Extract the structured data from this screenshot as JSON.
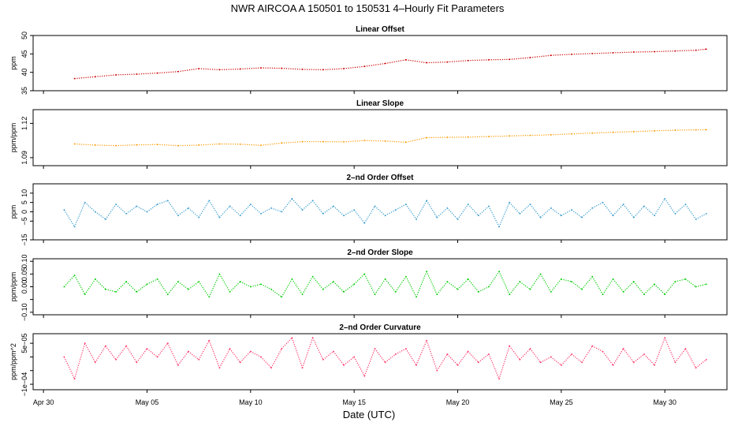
{
  "figure": {
    "title": "NWR   AIRCOA A   150501 to 150531   4–Hourly Fit Parameters",
    "xlabel": "Date (UTC)",
    "x_ticks": [
      "Apr 30",
      "May 05",
      "May 10",
      "May 15",
      "May 20",
      "May 25",
      "May 30"
    ]
  },
  "chart_data": [
    {
      "type": "scatter",
      "title": "Linear Offset",
      "ylabel": "ppm",
      "ylim": [
        35,
        50
      ],
      "yticks": [
        35,
        40,
        45,
        50
      ],
      "ytick_labels": [
        "35",
        "40",
        "45",
        "50"
      ],
      "color": "#cc0000",
      "x_unit": "day of May 2015 (UTC)",
      "x": [
        1.5,
        2.5,
        3.5,
        4.5,
        5.5,
        6.5,
        7.5,
        8.5,
        9.5,
        10.5,
        11.5,
        12.5,
        13.5,
        14.5,
        15.5,
        16.5,
        17.5,
        18.5,
        19.5,
        20.5,
        21.5,
        22.5,
        23.5,
        24.5,
        25.5,
        26.5,
        27.5,
        28.5,
        29.5,
        30.5,
        31.5,
        32.0
      ],
      "y": [
        38.3,
        38.8,
        39.3,
        39.5,
        39.8,
        40.2,
        41.0,
        40.7,
        40.9,
        41.2,
        41.1,
        40.8,
        40.7,
        41.0,
        41.6,
        42.4,
        43.4,
        42.6,
        42.8,
        43.2,
        43.4,
        43.5,
        44.0,
        44.6,
        44.9,
        45.1,
        45.3,
        45.5,
        45.6,
        45.8,
        46.0,
        46.3
      ]
    },
    {
      "type": "scatter",
      "title": "Linear Slope",
      "ylabel": "ppm/ppm",
      "ylim": [
        1.083,
        1.132
      ],
      "yticks": [
        1.09,
        1.12
      ],
      "ytick_labels": [
        "1.09",
        "1.12"
      ],
      "color": "#ff9900",
      "x_unit": "day of May 2015 (UTC)",
      "x": [
        1.5,
        2.5,
        3.5,
        4.5,
        5.5,
        6.5,
        7.5,
        8.5,
        9.5,
        10.5,
        11.5,
        12.5,
        13.5,
        14.5,
        15.5,
        16.5,
        17.5,
        18.5,
        19.5,
        20.5,
        21.5,
        22.5,
        23.5,
        24.5,
        25.5,
        26.5,
        27.5,
        28.5,
        29.5,
        30.5,
        31.5,
        32.0
      ],
      "y": [
        1.102,
        1.101,
        1.1005,
        1.1012,
        1.1015,
        1.1005,
        1.101,
        1.102,
        1.1018,
        1.1008,
        1.1028,
        1.104,
        1.104,
        1.1038,
        1.105,
        1.1045,
        1.1035,
        1.1075,
        1.1078,
        1.108,
        1.1085,
        1.109,
        1.1095,
        1.11,
        1.1108,
        1.1115,
        1.1122,
        1.1128,
        1.1135,
        1.114,
        1.1143,
        1.1145
      ]
    },
    {
      "type": "scatter",
      "title": "2–nd Order Offset",
      "ylabel": "ppm",
      "ylim": [
        -15,
        15
      ],
      "yticks": [
        -15,
        -5,
        0,
        5,
        10
      ],
      "ytick_labels": [
        "−15",
        "−5",
        "0",
        "5",
        "10"
      ],
      "color": "#3399cc",
      "x_unit": "day of May 2015 (UTC)",
      "x": [
        1.0,
        1.5,
        2.0,
        2.5,
        3.0,
        3.5,
        4.0,
        4.5,
        5.0,
        5.5,
        6.0,
        6.5,
        7.0,
        7.5,
        8.0,
        8.5,
        9.0,
        9.5,
        10.0,
        10.5,
        11.0,
        11.5,
        12.0,
        12.5,
        13.0,
        13.5,
        14.0,
        14.5,
        15.0,
        15.5,
        16.0,
        16.5,
        17.0,
        17.5,
        18.0,
        18.5,
        19.0,
        19.5,
        20.0,
        20.5,
        21.0,
        21.5,
        22.0,
        22.5,
        23.0,
        23.5,
        24.0,
        24.5,
        25.0,
        25.5,
        26.0,
        26.5,
        27.0,
        27.5,
        28.0,
        28.5,
        29.0,
        29.5,
        30.0,
        30.5,
        31.0,
        31.5,
        32.0
      ],
      "y": [
        1,
        -8,
        5,
        0,
        -4,
        4,
        -1,
        3,
        0,
        4,
        6,
        -2,
        2,
        -3,
        6,
        -3,
        3,
        -2,
        4,
        -1,
        2,
        0,
        7,
        1,
        6,
        -1,
        3,
        -2,
        1,
        -6,
        3,
        -2,
        1,
        4,
        -4,
        6,
        -3,
        2,
        -4,
        4,
        -2,
        3,
        -8,
        5,
        -1,
        4,
        -3,
        2,
        -2,
        1,
        -3,
        2,
        5,
        -2,
        4,
        -3,
        3,
        -2,
        7,
        -1,
        4,
        -4,
        -1
      ]
    },
    {
      "type": "scatter",
      "title": "2–nd Order Slope",
      "ylabel": "ppm/ppm",
      "ylim": [
        -0.11,
        0.11
      ],
      "yticks": [
        -0.1,
        -0.05,
        0.0,
        0.05,
        0.1
      ],
      "ytick_labels": [
        "−0.10",
        "",
        "0.00",
        "0.05",
        "0.10"
      ],
      "color": "#00cc00",
      "x_unit": "day of May 2015 (UTC)",
      "x": [
        1.0,
        1.5,
        2.0,
        2.5,
        3.0,
        3.5,
        4.0,
        4.5,
        5.0,
        5.5,
        6.0,
        6.5,
        7.0,
        7.5,
        8.0,
        8.5,
        9.0,
        9.5,
        10.0,
        10.5,
        11.0,
        11.5,
        12.0,
        12.5,
        13.0,
        13.5,
        14.0,
        14.5,
        15.0,
        15.5,
        16.0,
        16.5,
        17.0,
        17.5,
        18.0,
        18.5,
        19.0,
        19.5,
        20.0,
        20.5,
        21.0,
        21.5,
        22.0,
        22.5,
        23.0,
        23.5,
        24.0,
        24.5,
        25.0,
        25.5,
        26.0,
        26.5,
        27.0,
        27.5,
        28.0,
        28.5,
        29.0,
        29.5,
        30.0,
        30.5,
        31.0,
        31.5,
        32.0
      ],
      "y": [
        0.0,
        0.045,
        -0.03,
        0.03,
        -0.01,
        -0.02,
        0.02,
        -0.02,
        0.01,
        0.03,
        -0.03,
        0.02,
        -0.01,
        0.02,
        -0.04,
        0.05,
        -0.02,
        0.02,
        0.0,
        0.01,
        -0.01,
        -0.04,
        0.03,
        -0.03,
        0.04,
        -0.01,
        0.02,
        -0.02,
        0.01,
        0.05,
        -0.03,
        0.03,
        -0.02,
        0.04,
        -0.04,
        0.06,
        -0.03,
        0.02,
        -0.01,
        0.03,
        -0.02,
        0.0,
        0.06,
        -0.03,
        0.02,
        -0.01,
        0.05,
        -0.02,
        0.03,
        0.02,
        -0.01,
        0.04,
        -0.03,
        0.03,
        -0.02,
        0.02,
        -0.03,
        0.01,
        -0.03,
        0.02,
        0.03,
        0.0,
        0.01
      ]
    },
    {
      "type": "scatter",
      "title": "2–nd Order Curvature",
      "ylabel": "ppm/ppm^2",
      "ylim": [
        -0.00012,
        8.5e-05
      ],
      "yticks": [
        -0.0001,
        -5e-05,
        0.0,
        5e-05
      ],
      "ytick_labels": [
        "−1e−04",
        "",
        "",
        "5e−05"
      ],
      "color": "#ff3366",
      "x_unit": "day of May 2015 (UTC)",
      "x": [
        1.0,
        1.5,
        2.0,
        2.5,
        3.0,
        3.5,
        4.0,
        4.5,
        5.0,
        5.5,
        6.0,
        6.5,
        7.0,
        7.5,
        8.0,
        8.5,
        9.0,
        9.5,
        10.0,
        10.5,
        11.0,
        11.5,
        12.0,
        12.5,
        13.0,
        13.5,
        14.0,
        14.5,
        15.0,
        15.5,
        16.0,
        16.5,
        17.0,
        17.5,
        18.0,
        18.5,
        19.0,
        19.5,
        20.0,
        20.5,
        21.0,
        21.5,
        22.0,
        22.5,
        23.0,
        23.5,
        24.0,
        24.5,
        25.0,
        25.5,
        26.0,
        26.5,
        27.0,
        27.5,
        28.0,
        28.5,
        29.0,
        29.5,
        30.0,
        30.5,
        31.0,
        31.5,
        32.0
      ],
      "y": [
        0.0,
        -8e-05,
        5e-05,
        -2e-05,
        4e-05,
        -1e-05,
        4e-05,
        -2e-05,
        3e-05,
        0.0,
        5e-05,
        -3e-05,
        2e-05,
        -1e-05,
        6e-05,
        -4e-05,
        3e-05,
        -2e-05,
        2e-05,
        0.0,
        -4e-05,
        3e-05,
        7e-05,
        -4e-05,
        7e-05,
        -1e-05,
        2e-05,
        -3e-05,
        0.0,
        -7e-05,
        3e-05,
        -2e-05,
        1e-05,
        3e-05,
        -3e-05,
        6e-05,
        -5e-05,
        1e-05,
        -3e-05,
        2e-05,
        -2e-05,
        1e-05,
        -8e-05,
        4e-05,
        -1e-05,
        3e-05,
        -2e-05,
        0.0,
        -3e-05,
        1e-05,
        -2e-05,
        4e-05,
        2e-05,
        -3e-05,
        3e-05,
        -2e-05,
        1e-05,
        -3e-05,
        7e-05,
        -2e-05,
        3e-05,
        -4e-05,
        -1e-05
      ]
    }
  ]
}
